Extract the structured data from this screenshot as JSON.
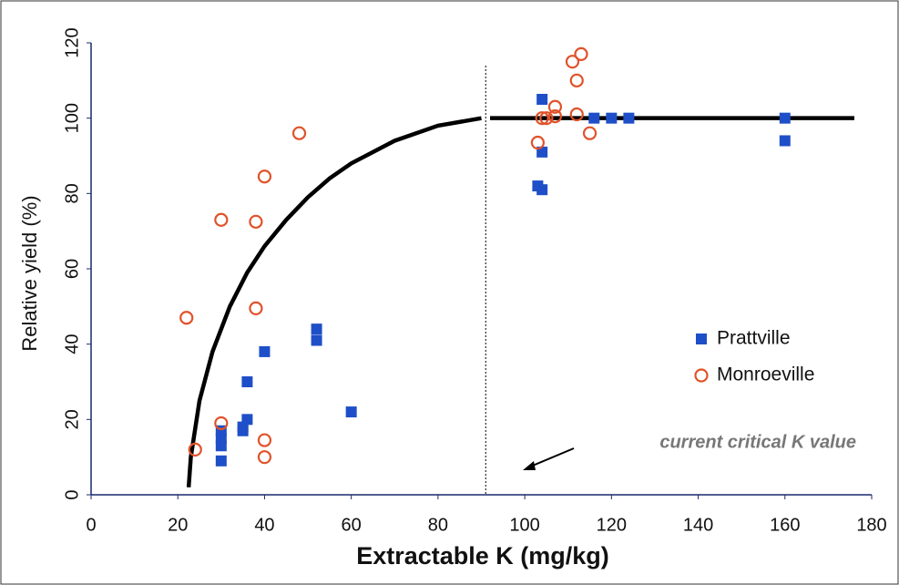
{
  "chart_data": {
    "type": "scatter",
    "xlabel": "Extractable K (mg/kg)",
    "ylabel": "Relative yield (%)",
    "xlim": [
      0,
      180
    ],
    "ylim": [
      0,
      120
    ],
    "xticks": [
      0,
      20,
      40,
      60,
      80,
      100,
      120,
      140,
      160,
      180
    ],
    "yticks": [
      0,
      20,
      40,
      60,
      80,
      100,
      120
    ],
    "grid": false,
    "legend": "right",
    "series": [
      {
        "name": "Prattville",
        "color": "#1f4fc8",
        "marker": "square",
        "x": [
          30,
          30,
          30,
          30,
          35,
          35,
          36,
          36,
          40,
          52,
          52,
          60,
          104,
          104,
          103,
          104,
          116,
          120,
          124,
          160,
          160
        ],
        "values": [
          9,
          13,
          15,
          17,
          17,
          18,
          20,
          30,
          38,
          44,
          41,
          22,
          105,
          91,
          82,
          81,
          100,
          100,
          100,
          100,
          94
        ]
      },
      {
        "name": "Monroeville",
        "color": "#e0522a",
        "marker": "circle",
        "x": [
          22,
          30,
          38,
          40,
          48,
          38,
          30,
          24,
          40,
          40,
          111,
          113,
          112,
          107,
          107,
          105,
          104,
          103,
          112,
          115
        ],
        "values": [
          47,
          73,
          72.5,
          84.5,
          96,
          49.5,
          19,
          12,
          14.5,
          10,
          115,
          117,
          110,
          103,
          100.5,
          100,
          100,
          93.5,
          101,
          96
        ]
      }
    ],
    "curve": {
      "color": "#000000",
      "x": [
        22.5,
        23,
        25,
        28,
        32,
        36,
        40,
        45,
        50,
        55,
        60,
        70,
        80,
        90,
        91,
        92,
        176
      ],
      "values": [
        2,
        10,
        25,
        38,
        50,
        59,
        66,
        73,
        79,
        84,
        88,
        94,
        98,
        100,
        null,
        100,
        100
      ]
    },
    "reference_line": {
      "x": 91
    },
    "annotation": "current critical K value"
  }
}
